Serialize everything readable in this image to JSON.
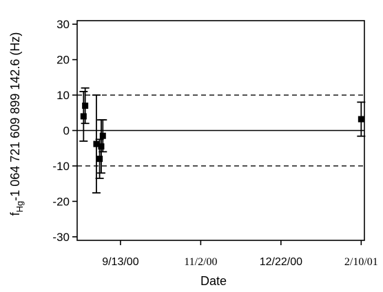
{
  "chart_data": {
    "type": "scatter",
    "title": "",
    "xlabel": "Date",
    "ylabel": {
      "prefix": "f",
      "subscript": "Hg",
      "suffix": "-1 064 721 609 899 142.6 (Hz)"
    },
    "ylim": [
      -31,
      31
    ],
    "yticks": [
      -30,
      -20,
      -10,
      0,
      10,
      20,
      30
    ],
    "xlim": [
      "2000-08-17",
      "2001-02-12"
    ],
    "xticks": [
      {
        "date": "2000-09-13",
        "label": "9/13/00"
      },
      {
        "date": "2000-11-02",
        "label": "11/2/00"
      },
      {
        "date": "2000-12-22",
        "label": "12/22/00"
      },
      {
        "date": "2001-02-10",
        "label": "2/10/01"
      }
    ],
    "reference_lines": [
      {
        "y": 10,
        "style": "dashed"
      },
      {
        "y": 0,
        "style": "solid"
      },
      {
        "y": -10,
        "style": "dashed"
      }
    ],
    "points": [
      {
        "x": "2000-08-21",
        "y": 4,
        "err": 7
      },
      {
        "x": "2000-08-22",
        "y": 7,
        "err": 5
      },
      {
        "x": "2000-08-29",
        "y": -3.8,
        "err": 13.8
      },
      {
        "x": "2000-08-31",
        "y": -8,
        "err": 5.5
      },
      {
        "x": "2000-09-01",
        "y": -4.5,
        "err": 7.5
      },
      {
        "x": "2000-09-02",
        "y": -1.5,
        "err": 4.5
      },
      {
        "x": "2001-02-10",
        "y": 3.2,
        "err": 4.8
      }
    ],
    "grid": false,
    "legend": "none"
  }
}
